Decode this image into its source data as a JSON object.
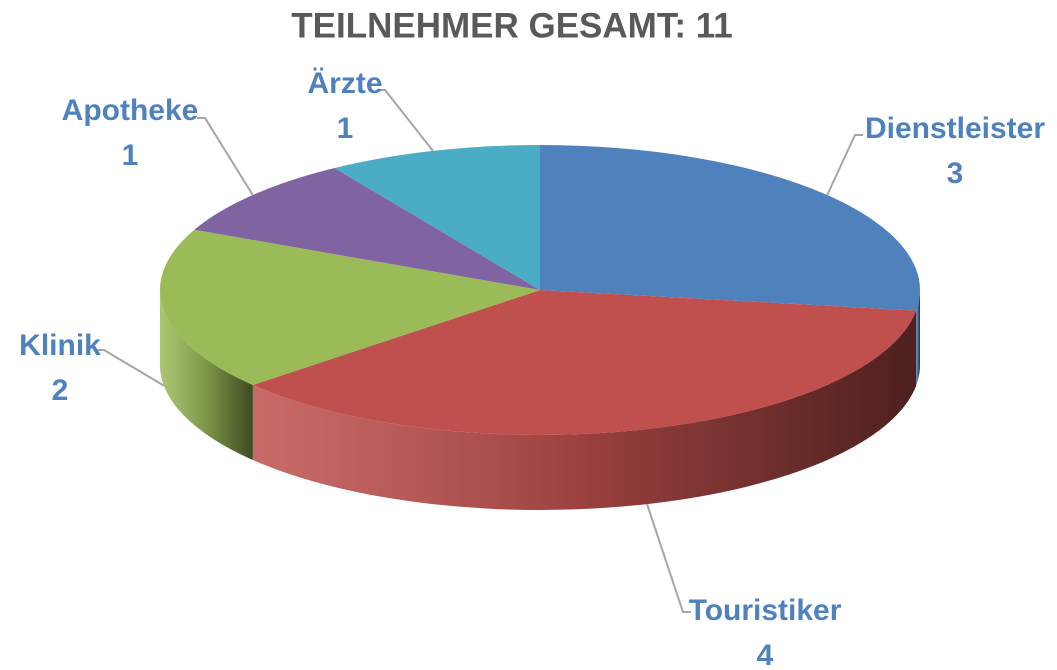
{
  "chart_data": {
    "type": "pie",
    "title": "TEILNEHMER GESAMT: 11",
    "categories": [
      "Dienstleister",
      "Touristiker",
      "Klinik",
      "Apotheke",
      "Ärzte"
    ],
    "values": [
      3,
      4,
      2,
      1,
      1
    ],
    "colors": [
      "#4f81bd",
      "#c0504d",
      "#9bbb59",
      "#8064a2",
      "#4bacc6"
    ]
  }
}
